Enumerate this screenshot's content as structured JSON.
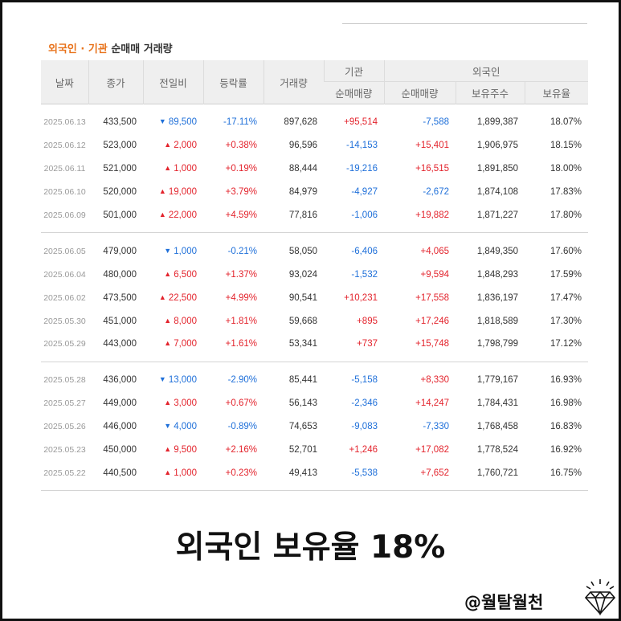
{
  "caption": {
    "part1": "외국인 · 기관",
    "part2": "순매매 거래량"
  },
  "headers": {
    "date": "날짜",
    "close": "종가",
    "change": "전일비",
    "rate": "등락률",
    "volume": "거래량",
    "inst_group": "기관",
    "foreign_group": "외국인",
    "inst_net": "순매매량",
    "foreign_net": "순매매량",
    "foreign_shares": "보유주수",
    "foreign_ratio": "보유율"
  },
  "colors": {
    "up": "#e3232c",
    "down": "#1e6fd9",
    "accent": "#e8731c"
  },
  "groups": [
    [
      [
        "2025.06.13",
        "433,500",
        "down",
        "89,500",
        "-17.11%",
        "897,628",
        "+95,514",
        "-7,588",
        "1,899,387",
        "18.07%"
      ],
      [
        "2025.06.12",
        "523,000",
        "up",
        "2,000",
        "+0.38%",
        "96,596",
        "-14,153",
        "+15,401",
        "1,906,975",
        "18.15%"
      ],
      [
        "2025.06.11",
        "521,000",
        "up",
        "1,000",
        "+0.19%",
        "88,444",
        "-19,216",
        "+16,515",
        "1,891,850",
        "18.00%"
      ],
      [
        "2025.06.10",
        "520,000",
        "up",
        "19,000",
        "+3.79%",
        "84,979",
        "-4,927",
        "-2,672",
        "1,874,108",
        "17.83%"
      ],
      [
        "2025.06.09",
        "501,000",
        "up",
        "22,000",
        "+4.59%",
        "77,816",
        "-1,006",
        "+19,882",
        "1,871,227",
        "17.80%"
      ]
    ],
    [
      [
        "2025.06.05",
        "479,000",
        "down",
        "1,000",
        "-0.21%",
        "58,050",
        "-6,406",
        "+4,065",
        "1,849,350",
        "17.60%"
      ],
      [
        "2025.06.04",
        "480,000",
        "up",
        "6,500",
        "+1.37%",
        "93,024",
        "-1,532",
        "+9,594",
        "1,848,293",
        "17.59%"
      ],
      [
        "2025.06.02",
        "473,500",
        "up",
        "22,500",
        "+4.99%",
        "90,541",
        "+10,231",
        "+17,558",
        "1,836,197",
        "17.47%"
      ],
      [
        "2025.05.30",
        "451,000",
        "up",
        "8,000",
        "+1.81%",
        "59,668",
        "+895",
        "+17,246",
        "1,818,589",
        "17.30%"
      ],
      [
        "2025.05.29",
        "443,000",
        "up",
        "7,000",
        "+1.61%",
        "53,341",
        "+737",
        "+15,748",
        "1,798,799",
        "17.12%"
      ]
    ],
    [
      [
        "2025.05.28",
        "436,000",
        "down",
        "13,000",
        "-2.90%",
        "85,441",
        "-5,158",
        "+8,330",
        "1,779,167",
        "16.93%"
      ],
      [
        "2025.05.27",
        "449,000",
        "up",
        "3,000",
        "+0.67%",
        "56,143",
        "-2,346",
        "+14,247",
        "1,784,431",
        "16.98%"
      ],
      [
        "2025.05.26",
        "446,000",
        "down",
        "4,000",
        "-0.89%",
        "74,653",
        "-9,083",
        "-7,330",
        "1,768,458",
        "16.83%"
      ],
      [
        "2025.05.23",
        "450,000",
        "up",
        "9,500",
        "+2.16%",
        "52,701",
        "+1,246",
        "+17,082",
        "1,778,524",
        "16.92%"
      ],
      [
        "2025.05.22",
        "440,500",
        "up",
        "1,000",
        "+0.23%",
        "49,413",
        "-5,538",
        "+7,652",
        "1,760,721",
        "16.75%"
      ]
    ]
  ],
  "headline": "외국인 보유율 18%",
  "handle": "@월탈월천",
  "icons": {
    "logo": "diamond-icon",
    "up_arrow": "▲",
    "down_arrow": "▼"
  }
}
